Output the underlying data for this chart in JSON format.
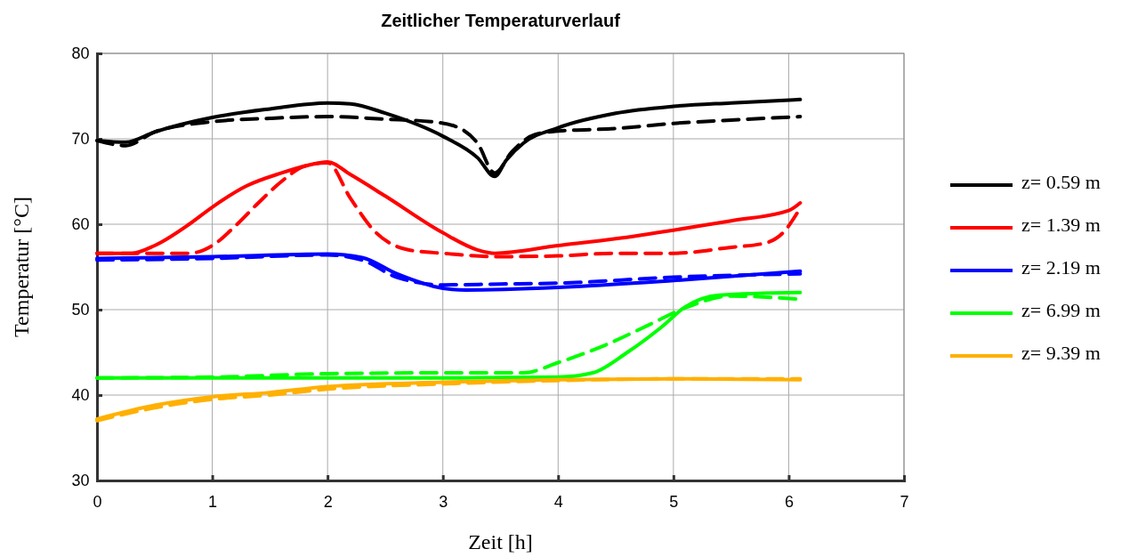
{
  "chart_data": {
    "type": "line",
    "title": "Zeitlicher Temperaturverlauf",
    "xlabel": "Zeit [h]",
    "ylabel": "Temperatur [°C]",
    "xlim": [
      0,
      7
    ],
    "xticks": [
      0,
      1,
      2,
      3,
      4,
      5,
      6,
      7
    ],
    "ylim": [
      30,
      80
    ],
    "yticks": [
      30,
      40,
      50,
      60,
      70,
      80
    ],
    "grid": true,
    "legend": "right",
    "marker": "none",
    "series": [
      {
        "name": "z= 0.59 m",
        "color": "#000000",
        "line_style": "solid",
        "x": [
          0,
          0.25,
          0.5,
          1,
          1.5,
          2,
          2.2,
          2.5,
          3,
          3.3,
          3.45,
          3.55,
          3.7,
          4,
          4.5,
          5,
          5.5,
          6.1
        ],
        "values": [
          69.8,
          69.6,
          70.8,
          72.5,
          73.5,
          74.2,
          74.1,
          73,
          70.3,
          67.8,
          65.6,
          67.5,
          69.5,
          71.3,
          73,
          73.8,
          74.2,
          74.6
        ]
      },
      {
        "name": "z= 1.39 m",
        "color": "#ff0000",
        "line_style": "solid",
        "x": [
          0,
          0.3,
          0.5,
          0.8,
          1,
          1.3,
          1.6,
          1.8,
          2,
          2.2,
          2.5,
          3,
          3.3,
          3.45,
          4,
          4.5,
          5,
          5.5,
          6,
          6.1
        ],
        "values": [
          56.6,
          56.6,
          57.5,
          60,
          62,
          64.5,
          66,
          66.8,
          67.3,
          65.8,
          63.3,
          59,
          57,
          56.6,
          57.5,
          58.3,
          59.3,
          60.4,
          61.6,
          62.5
        ]
      },
      {
        "name": "z= 2.19 m",
        "color": "#0000ff",
        "line_style": "solid",
        "x": [
          0,
          1,
          2,
          2.3,
          2.6,
          3,
          3.2,
          4,
          5,
          6.1
        ],
        "values": [
          56,
          56.2,
          56.5,
          56.1,
          54.2,
          52.5,
          52.3,
          52.6,
          53.4,
          54.5
        ]
      },
      {
        "name": "z= 6.99 m",
        "color": "#00ff00",
        "line_style": "solid",
        "x": [
          0,
          3,
          4,
          4.3,
          4.6,
          4.9,
          5.1,
          5.4,
          6.1
        ],
        "values": [
          42,
          42,
          42.1,
          42.6,
          45,
          48,
          50.3,
          51.7,
          52
        ]
      },
      {
        "name": "z= 9.39 m",
        "color": "#ffb000",
        "line_style": "solid",
        "x": [
          0,
          0.5,
          1,
          1.5,
          2,
          3,
          4,
          5,
          6.1
        ],
        "values": [
          37.2,
          38.8,
          39.8,
          40.3,
          41,
          41.5,
          41.8,
          41.9,
          41.8
        ]
      },
      {
        "color": "#000000",
        "line_style": "dashed",
        "x": [
          0,
          0.25,
          0.5,
          1,
          1.5,
          2,
          2.5,
          2.9,
          3.1,
          3.3,
          3.45,
          3.6,
          3.8,
          4,
          4.5,
          5,
          5.5,
          6.1
        ],
        "values": [
          69.8,
          69.2,
          70.8,
          72,
          72.4,
          72.6,
          72.3,
          72,
          71.5,
          69.5,
          66,
          68.5,
          70.5,
          70.9,
          71.2,
          71.8,
          72.2,
          72.6
        ]
      },
      {
        "color": "#ff0000",
        "line_style": "dashed",
        "x": [
          0,
          0.8,
          1,
          1.2,
          1.4,
          1.6,
          1.8,
          2,
          2.2,
          2.4,
          2.7,
          3,
          3.5,
          4,
          4.5,
          5,
          5.5,
          5.8,
          5.95,
          6.1
        ],
        "values": [
          56.6,
          56.6,
          57.5,
          59.8,
          62.5,
          65,
          66.8,
          67.2,
          63,
          59.3,
          57,
          56.6,
          56.2,
          56.3,
          56.6,
          56.6,
          57.3,
          57.8,
          59,
          61.9
        ]
      },
      {
        "color": "#0000ff",
        "line_style": "dashed",
        "x": [
          0,
          1,
          2,
          2.3,
          2.6,
          3,
          3.5,
          4,
          5,
          6.1
        ],
        "values": [
          55.8,
          56,
          56.4,
          55.8,
          53.8,
          52.9,
          53,
          53.1,
          53.8,
          54.2
        ]
      },
      {
        "color": "#00ff00",
        "line_style": "dashed",
        "x": [
          0,
          1,
          2,
          3,
          3.7,
          4,
          4.4,
          4.8,
          5.1,
          5.5,
          6.1
        ],
        "values": [
          42,
          42.1,
          42.5,
          42.6,
          42.6,
          43.8,
          45.8,
          48.3,
          50.2,
          51.6,
          51.2
        ]
      },
      {
        "color": "#ffb000",
        "line_style": "dashed",
        "x": [
          0,
          0.5,
          1,
          1.5,
          2,
          3,
          4,
          5,
          6.1
        ],
        "values": [
          37,
          38.5,
          39.5,
          40,
          40.7,
          41.3,
          41.7,
          41.9,
          41.9
        ]
      }
    ]
  }
}
